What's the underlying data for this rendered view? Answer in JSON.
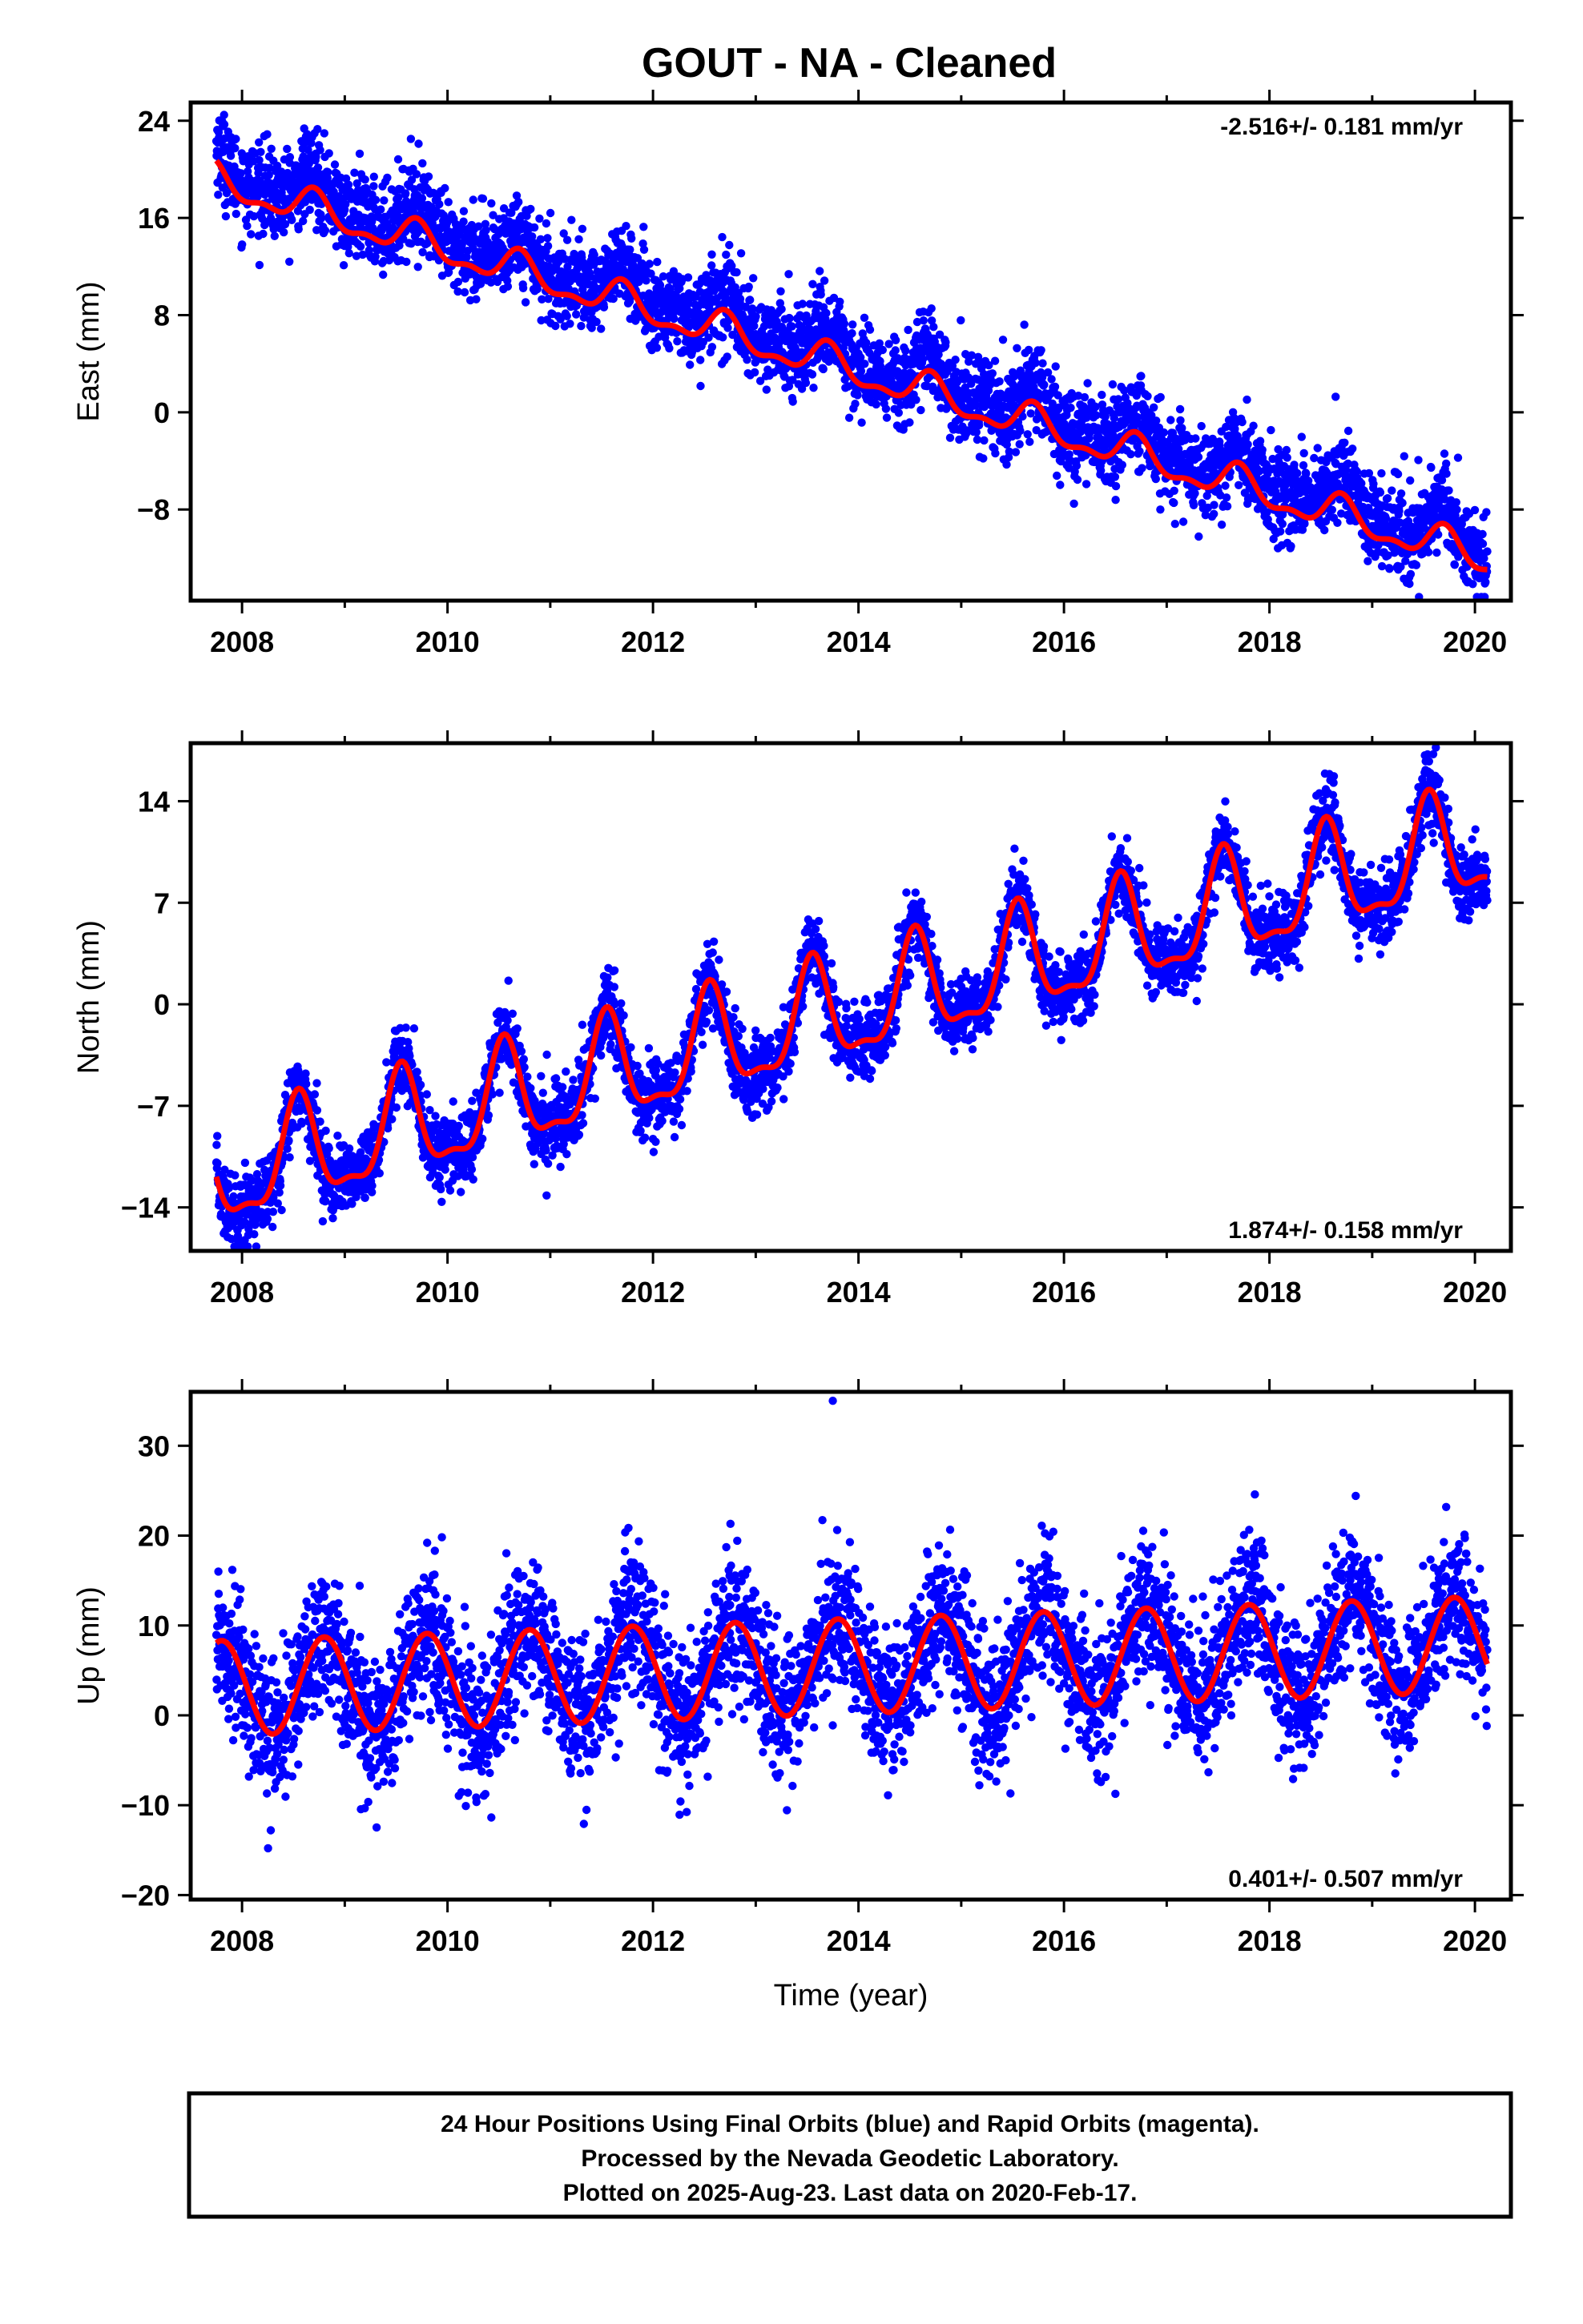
{
  "title": "GOUT  - NA - Cleaned",
  "colors": {
    "points": "#0000ff",
    "model": "#ff0000",
    "frame": "#000000"
  },
  "chart_data": [
    {
      "type": "scatter",
      "id": "east",
      "ylabel": "East (mm)",
      "xlabel": "",
      "xlim": [
        2007.5,
        2020.35
      ],
      "ylim": [
        -15.5,
        25.5
      ],
      "xticks": [
        2008,
        2010,
        2012,
        2014,
        2016,
        2018,
        2020
      ],
      "yticks": [
        24,
        16,
        8,
        0,
        -8
      ],
      "rate_label": "-2.516+/- 0.181 mm/yr",
      "rate_position": "top-right",
      "model": {
        "start": 2007.75,
        "end": 2020.12,
        "value_at_start": 19.0,
        "trend": -2.516,
        "annual_amp": 1.3,
        "annual_phase_peak": 0.7,
        "semi_amp": 0.6
      },
      "observations": {
        "count": 4300,
        "noise_sd": 1.8,
        "offset_from_model": 1.2
      }
    },
    {
      "type": "scatter",
      "id": "north",
      "ylabel": "North (mm)",
      "xlabel": "",
      "xlim": [
        2007.5,
        2020.35
      ],
      "ylim": [
        -17,
        18
      ],
      "xticks": [
        2008,
        2010,
        2012,
        2014,
        2016,
        2018,
        2020
      ],
      "yticks": [
        14,
        7,
        0,
        -7,
        -14
      ],
      "rate_label": "1.874+/- 0.158 mm/yr",
      "rate_position": "bottom-right",
      "model": {
        "start": 2007.75,
        "end": 2020.12,
        "value_at_start": -12.0,
        "trend": 1.874,
        "annual_amp": 3.5,
        "annual_phase_peak": 0.55,
        "semi_amp": 1.2
      },
      "observations": {
        "count": 4300,
        "noise_sd": 1.3,
        "offset_from_model": 0.0
      }
    },
    {
      "type": "scatter",
      "id": "up",
      "ylabel": "Up (mm)",
      "xlabel": "Time (year)",
      "xlim": [
        2007.5,
        2020.35
      ],
      "ylim": [
        -20.5,
        36
      ],
      "xticks": [
        2008,
        2010,
        2012,
        2014,
        2016,
        2018,
        2020
      ],
      "yticks": [
        30,
        20,
        10,
        0,
        -10,
        -20
      ],
      "rate_label": "0.401+/- 0.507 mm/yr",
      "rate_position": "bottom-right",
      "model": {
        "start": 2007.75,
        "end": 2020.12,
        "value_at_start": 3.0,
        "trend": 0.401,
        "annual_amp": 5.3,
        "annual_phase_peak": 0.8,
        "semi_amp": 0.0
      },
      "observations": {
        "count": 4300,
        "noise_sd": 4.0,
        "offset_from_model": 0.0
      },
      "outliers": [
        {
          "x": 2013.75,
          "y": 35.0
        }
      ]
    }
  ],
  "footer": {
    "lines": [
      "24 Hour Positions Using Final Orbits (blue) and Rapid Orbits (magenta).",
      "Processed by the Nevada Geodetic Laboratory.",
      "Plotted on 2025-Aug-23. Last data on 2020-Feb-17."
    ]
  }
}
